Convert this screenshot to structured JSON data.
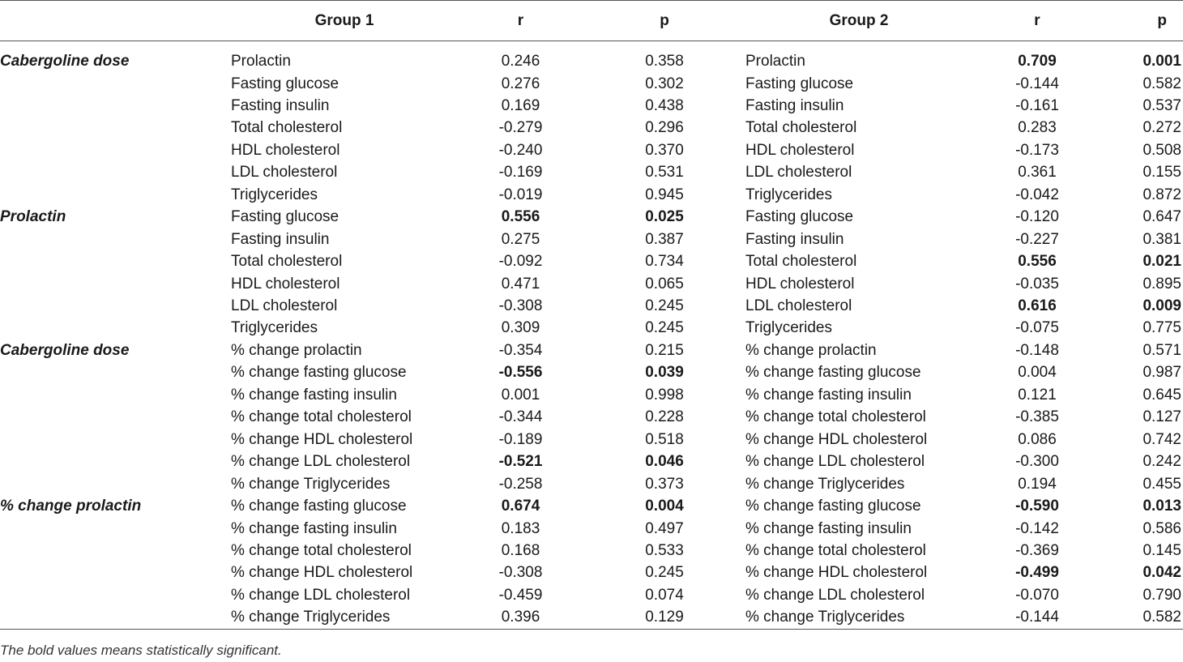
{
  "headers": {
    "group1": "Group 1",
    "r1": "r",
    "p1": "p",
    "group2": "Group 2",
    "r2": "r",
    "p2": "p"
  },
  "rows": [
    {
      "var": "Cabergoline dose",
      "n1": "Prolactin",
      "r1": "0.246",
      "p1": "0.358",
      "n2": "Prolactin",
      "r2": "0.709",
      "p2": "0.001",
      "b1": false,
      "b2": true
    },
    {
      "var": "",
      "n1": "Fasting glucose",
      "r1": "0.276",
      "p1": "0.302",
      "n2": "Fasting glucose",
      "r2": "-0.144",
      "p2": "0.582",
      "b1": false,
      "b2": false
    },
    {
      "var": "",
      "n1": "Fasting insulin",
      "r1": "0.169",
      "p1": "0.438",
      "n2": "Fasting insulin",
      "r2": "-0.161",
      "p2": "0.537",
      "b1": false,
      "b2": false
    },
    {
      "var": "",
      "n1": "Total cholesterol",
      "r1": "-0.279",
      "p1": "0.296",
      "n2": "Total cholesterol",
      "r2": "0.283",
      "p2": "0.272",
      "b1": false,
      "b2": false
    },
    {
      "var": "",
      "n1": "HDL cholesterol",
      "r1": "-0.240",
      "p1": "0.370",
      "n2": "HDL cholesterol",
      "r2": "-0.173",
      "p2": "0.508",
      "b1": false,
      "b2": false
    },
    {
      "var": "",
      "n1": "LDL cholesterol",
      "r1": "-0.169",
      "p1": "0.531",
      "n2": "LDL cholesterol",
      "r2": "0.361",
      "p2": "0.155",
      "b1": false,
      "b2": false
    },
    {
      "var": "",
      "n1": "Triglycerides",
      "r1": "-0.019",
      "p1": "0.945",
      "n2": "Triglycerides",
      "r2": "-0.042",
      "p2": "0.872",
      "b1": false,
      "b2": false
    },
    {
      "var": "Prolactin",
      "n1": "Fasting glucose",
      "r1": "0.556",
      "p1": "0.025",
      "n2": "Fasting glucose",
      "r2": "-0.120",
      "p2": "0.647",
      "b1": true,
      "b2": false
    },
    {
      "var": "",
      "n1": "Fasting insulin",
      "r1": "0.275",
      "p1": "0.387",
      "n2": "Fasting insulin",
      "r2": "-0.227",
      "p2": "0.381",
      "b1": false,
      "b2": false
    },
    {
      "var": "",
      "n1": "Total cholesterol",
      "r1": "-0.092",
      "p1": "0.734",
      "n2": "Total cholesterol",
      "r2": "0.556",
      "p2": "0.021",
      "b1": false,
      "b2": true
    },
    {
      "var": "",
      "n1": "HDL cholesterol",
      "r1": "0.471",
      "p1": "0.065",
      "n2": "HDL cholesterol",
      "r2": "-0.035",
      "p2": "0.895",
      "b1": false,
      "b2": false
    },
    {
      "var": "",
      "n1": "LDL cholesterol",
      "r1": "-0.308",
      "p1": "0.245",
      "n2": "LDL cholesterol",
      "r2": "0.616",
      "p2": "0.009",
      "b1": false,
      "b2": true
    },
    {
      "var": "",
      "n1": "Triglycerides",
      "r1": "0.309",
      "p1": "0.245",
      "n2": "Triglycerides",
      "r2": "-0.075",
      "p2": "0.775",
      "b1": false,
      "b2": false
    },
    {
      "var": "Cabergoline dose",
      "n1": "% change prolactin",
      "r1": "-0.354",
      "p1": "0.215",
      "n2": "% change prolactin",
      "r2": "-0.148",
      "p2": "0.571",
      "b1": false,
      "b2": false
    },
    {
      "var": "",
      "n1": "% change fasting glucose",
      "r1": "-0.556",
      "p1": "0.039",
      "n2": "% change fasting glucose",
      "r2": "0.004",
      "p2": "0.987",
      "b1": true,
      "b2": false
    },
    {
      "var": "",
      "n1": "% change fasting insulin",
      "r1": "0.001",
      "p1": "0.998",
      "n2": "% change fasting insulin",
      "r2": "0.121",
      "p2": "0.645",
      "b1": false,
      "b2": false
    },
    {
      "var": "",
      "n1": "% change total cholesterol",
      "r1": "-0.344",
      "p1": "0.228",
      "n2": "% change total cholesterol",
      "r2": "-0.385",
      "p2": "0.127",
      "b1": false,
      "b2": false
    },
    {
      "var": "",
      "n1": "% change HDL cholesterol",
      "r1": "-0.189",
      "p1": "0.518",
      "n2": "% change HDL cholesterol",
      "r2": "0.086",
      "p2": "0.742",
      "b1": false,
      "b2": false
    },
    {
      "var": "",
      "n1": "% change LDL cholesterol",
      "r1": "-0.521",
      "p1": "0.046",
      "n2": "% change LDL cholesterol",
      "r2": "-0.300",
      "p2": "0.242",
      "b1": true,
      "b2": false
    },
    {
      "var": "",
      "n1": "% change Triglycerides",
      "r1": "-0.258",
      "p1": "0.373",
      "n2": "% change Triglycerides",
      "r2": "0.194",
      "p2": "0.455",
      "b1": false,
      "b2": false
    },
    {
      "var": "% change prolactin",
      "n1": "% change fasting glucose",
      "r1": "0.674",
      "p1": "0.004",
      "n2": "% change fasting glucose",
      "r2": "-0.590",
      "p2": "0.013",
      "b1": true,
      "b2": true
    },
    {
      "var": "",
      "n1": "% change fasting insulin",
      "r1": "0.183",
      "p1": "0.497",
      "n2": "% change fasting insulin",
      "r2": "-0.142",
      "p2": "0.586",
      "b1": false,
      "b2": false
    },
    {
      "var": "",
      "n1": "% change total cholesterol",
      "r1": "0.168",
      "p1": "0.533",
      "n2": "% change total cholesterol",
      "r2": "-0.369",
      "p2": "0.145",
      "b1": false,
      "b2": false
    },
    {
      "var": "",
      "n1": "% change HDL cholesterol",
      "r1": "-0.308",
      "p1": "0.245",
      "n2": "% change HDL cholesterol",
      "r2": "-0.499",
      "p2": "0.042",
      "b1": false,
      "b2": true
    },
    {
      "var": "",
      "n1": "% change LDL cholesterol",
      "r1": "-0.459",
      "p1": "0.074",
      "n2": "% change LDL cholesterol",
      "r2": "-0.070",
      "p2": "0.790",
      "b1": false,
      "b2": false
    },
    {
      "var": "",
      "n1": "% change Triglycerides",
      "r1": "0.396",
      "p1": "0.129",
      "n2": "% change Triglycerides",
      "r2": "-0.144",
      "p2": "0.582",
      "b1": false,
      "b2": false
    }
  ],
  "footnote": "The bold values means statistically significant."
}
